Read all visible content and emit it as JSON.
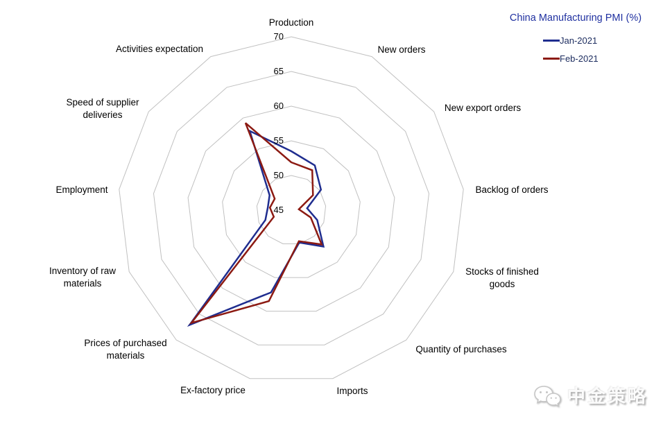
{
  "title": {
    "text": "China Manufacturing PMI (%)"
  },
  "legend": {
    "position": "top-right",
    "items": [
      {
        "label": "Jan-2021",
        "color": "#1F2D8F"
      },
      {
        "label": "Feb-2021",
        "color": "#8C1A12"
      }
    ]
  },
  "watermark": {
    "text": "中金策略",
    "icon": "wechat-logo-icon"
  },
  "colors": {
    "grid": "#C0C0C0",
    "axis_label_text": "#000000",
    "tick_label_text": "#000000",
    "title_text": "#1F30A0",
    "legend_text": "#1B2B5E"
  },
  "chart_data": {
    "type": "radar",
    "title": "China Manufacturing PMI (%)",
    "categories": [
      "Production",
      "New orders",
      "New export orders",
      "Backlog of orders",
      "Stocks of finished goods",
      "Quantity of purchases",
      "Imports",
      "Ex-factory price",
      "Prices of purchased materials",
      "Inventory of raw materials",
      "Employment",
      "Speed of supplier deliveries",
      "Activities expectation"
    ],
    "series": [
      {
        "name": "Jan-2021",
        "color": "#1F2D8F",
        "values": [
          53.5,
          52.3,
          50.2,
          47.3,
          49.0,
          52.0,
          49.8,
          57.2,
          67.1,
          49.0,
          48.4,
          48.8,
          57.9
        ]
      },
      {
        "name": "Feb-2021",
        "color": "#8C1A12",
        "values": [
          51.9,
          51.5,
          48.8,
          46.1,
          48.0,
          51.6,
          49.6,
          58.5,
          66.7,
          47.7,
          48.1,
          47.9,
          59.2
        ]
      }
    ],
    "radial_axis": {
      "min": 45,
      "max": 70,
      "tick_interval": 5,
      "ticks": [
        45,
        50,
        55,
        60,
        65,
        70
      ]
    },
    "grid": "on",
    "legend_position": "top-right"
  }
}
